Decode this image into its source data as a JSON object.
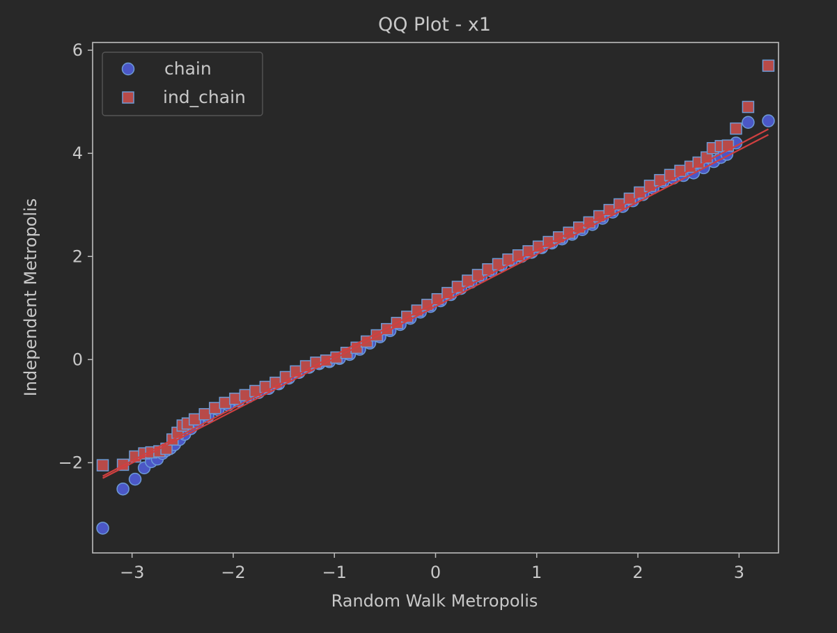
{
  "chart_data": {
    "type": "scatter",
    "title": "QQ Plot - x1",
    "xlabel": "Random Walk Metropolis",
    "ylabel": "Independent Metropolis",
    "xlim": [
      -3.39,
      3.39
    ],
    "ylim": [
      -3.75,
      6.15
    ],
    "xticks": [
      -3,
      -2,
      -1,
      0,
      1,
      2,
      3
    ],
    "xtick_labels": [
      "−3",
      "−2",
      "−1",
      "0",
      "1",
      "2",
      "3"
    ],
    "yticks": [
      -2,
      0,
      2,
      4,
      6
    ],
    "ytick_labels": [
      "−2",
      "0",
      "2",
      "4",
      "6"
    ],
    "grid": false,
    "legend_position": "top-left",
    "series": [
      {
        "name": "chain",
        "marker": "circle",
        "fill": "#4b57c6",
        "edge": "#6d9bd6",
        "line_color": "#d04040",
        "fit_line": [
          [
            -3.29,
            -2.3
          ],
          [
            3.29,
            4.36
          ]
        ],
        "points": [
          [
            -3.29,
            -3.27
          ],
          [
            -3.09,
            -2.51
          ],
          [
            -2.97,
            -2.32
          ],
          [
            -2.88,
            -2.1
          ],
          [
            -2.81,
            -1.98
          ],
          [
            -2.75,
            -1.93
          ],
          [
            -2.7,
            -1.82
          ],
          [
            -2.66,
            -1.76
          ],
          [
            -2.62,
            -1.72
          ],
          [
            -2.58,
            -1.65
          ],
          [
            -2.53,
            -1.55
          ],
          [
            -2.48,
            -1.45
          ],
          [
            -2.42,
            -1.34
          ],
          [
            -2.35,
            -1.22
          ],
          [
            -2.25,
            -1.1
          ],
          [
            -2.15,
            -0.97
          ],
          [
            -2.05,
            -0.88
          ],
          [
            -1.95,
            -0.8
          ],
          [
            -1.85,
            -0.72
          ],
          [
            -1.75,
            -0.64
          ],
          [
            -1.65,
            -0.56
          ],
          [
            -1.55,
            -0.47
          ],
          [
            -1.45,
            -0.36
          ],
          [
            -1.35,
            -0.25
          ],
          [
            -1.25,
            -0.15
          ],
          [
            -1.15,
            -0.08
          ],
          [
            -1.05,
            -0.04
          ],
          [
            -0.95,
            0.02
          ],
          [
            -0.85,
            0.1
          ],
          [
            -0.75,
            0.2
          ],
          [
            -0.65,
            0.32
          ],
          [
            -0.55,
            0.44
          ],
          [
            -0.45,
            0.56
          ],
          [
            -0.35,
            0.68
          ],
          [
            -0.25,
            0.8
          ],
          [
            -0.15,
            0.92
          ],
          [
            -0.05,
            1.03
          ],
          [
            0.05,
            1.14
          ],
          [
            0.15,
            1.26
          ],
          [
            0.25,
            1.38
          ],
          [
            0.35,
            1.5
          ],
          [
            0.45,
            1.61
          ],
          [
            0.55,
            1.72
          ],
          [
            0.65,
            1.83
          ],
          [
            0.75,
            1.92
          ],
          [
            0.85,
            2.0
          ],
          [
            0.95,
            2.08
          ],
          [
            1.05,
            2.17
          ],
          [
            1.15,
            2.26
          ],
          [
            1.25,
            2.34
          ],
          [
            1.35,
            2.43
          ],
          [
            1.45,
            2.52
          ],
          [
            1.55,
            2.62
          ],
          [
            1.65,
            2.74
          ],
          [
            1.75,
            2.86
          ],
          [
            1.85,
            2.97
          ],
          [
            1.95,
            3.08
          ],
          [
            2.05,
            3.2
          ],
          [
            2.15,
            3.33
          ],
          [
            2.25,
            3.45
          ],
          [
            2.35,
            3.52
          ],
          [
            2.45,
            3.57
          ],
          [
            2.55,
            3.62
          ],
          [
            2.65,
            3.72
          ],
          [
            2.75,
            3.84
          ],
          [
            2.82,
            3.92
          ],
          [
            2.88,
            3.98
          ],
          [
            2.97,
            4.2
          ],
          [
            3.09,
            4.6
          ],
          [
            3.29,
            4.63
          ]
        ]
      },
      {
        "name": "ind_chain",
        "marker": "square",
        "fill": "#b84a48",
        "edge": "#6d9bd6",
        "line_color": "#d04040",
        "fit_line": [
          [
            -3.29,
            -2.26
          ],
          [
            3.29,
            4.47
          ]
        ],
        "points": [
          [
            -3.29,
            -2.05
          ],
          [
            -3.09,
            -2.04
          ],
          [
            -2.97,
            -1.88
          ],
          [
            -2.88,
            -1.82
          ],
          [
            -2.81,
            -1.8
          ],
          [
            -2.73,
            -1.78
          ],
          [
            -2.66,
            -1.73
          ],
          [
            -2.6,
            -1.55
          ],
          [
            -2.55,
            -1.42
          ],
          [
            -2.5,
            -1.28
          ],
          [
            -2.45,
            -1.24
          ],
          [
            -2.38,
            -1.16
          ],
          [
            -2.28,
            -1.06
          ],
          [
            -2.18,
            -0.94
          ],
          [
            -2.08,
            -0.84
          ],
          [
            -1.98,
            -0.76
          ],
          [
            -1.88,
            -0.69
          ],
          [
            -1.78,
            -0.61
          ],
          [
            -1.68,
            -0.53
          ],
          [
            -1.58,
            -0.45
          ],
          [
            -1.48,
            -0.34
          ],
          [
            -1.38,
            -0.23
          ],
          [
            -1.28,
            -0.13
          ],
          [
            -1.18,
            -0.06
          ],
          [
            -1.08,
            -0.02
          ],
          [
            -0.98,
            0.04
          ],
          [
            -0.88,
            0.13
          ],
          [
            -0.78,
            0.23
          ],
          [
            -0.68,
            0.35
          ],
          [
            -0.58,
            0.47
          ],
          [
            -0.48,
            0.59
          ],
          [
            -0.38,
            0.71
          ],
          [
            -0.28,
            0.83
          ],
          [
            -0.18,
            0.95
          ],
          [
            -0.08,
            1.06
          ],
          [
            0.02,
            1.17
          ],
          [
            0.12,
            1.29
          ],
          [
            0.22,
            1.41
          ],
          [
            0.32,
            1.53
          ],
          [
            0.42,
            1.64
          ],
          [
            0.52,
            1.75
          ],
          [
            0.62,
            1.85
          ],
          [
            0.72,
            1.94
          ],
          [
            0.82,
            2.02
          ],
          [
            0.92,
            2.1
          ],
          [
            1.02,
            2.19
          ],
          [
            1.12,
            2.28
          ],
          [
            1.22,
            2.37
          ],
          [
            1.32,
            2.46
          ],
          [
            1.42,
            2.56
          ],
          [
            1.52,
            2.66
          ],
          [
            1.62,
            2.78
          ],
          [
            1.72,
            2.9
          ],
          [
            1.82,
            3.01
          ],
          [
            1.92,
            3.12
          ],
          [
            2.02,
            3.24
          ],
          [
            2.12,
            3.37
          ],
          [
            2.22,
            3.48
          ],
          [
            2.32,
            3.58
          ],
          [
            2.42,
            3.66
          ],
          [
            2.52,
            3.74
          ],
          [
            2.6,
            3.82
          ],
          [
            2.68,
            3.92
          ],
          [
            2.74,
            4.1
          ],
          [
            2.82,
            4.14
          ],
          [
            2.89,
            4.15
          ],
          [
            2.97,
            4.48
          ],
          [
            3.09,
            4.9
          ],
          [
            3.29,
            5.7
          ]
        ]
      }
    ]
  }
}
